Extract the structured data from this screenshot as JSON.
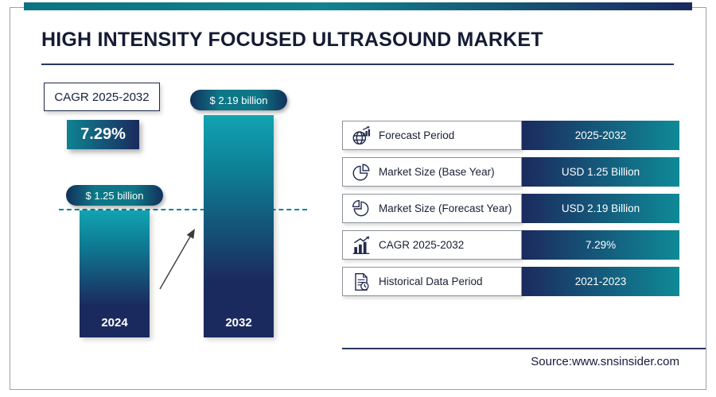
{
  "title": "HIGH INTENSITY FOCUSED ULTRASOUND MARKET",
  "colors": {
    "navy": "#1b2a5e",
    "teal": "#0e8391",
    "text_dark": "#141b34",
    "white": "#ffffff"
  },
  "cagr_box": {
    "label": "CAGR 2025-2032",
    "value": "7.29%"
  },
  "chart_data": {
    "type": "bar",
    "title": "HIGH INTENSITY FOCUSED ULTRASOUND MARKET",
    "categories": [
      "2024",
      "2032"
    ],
    "values": [
      1.25,
      2.19
    ],
    "value_labels": [
      "$ 1.25 billion",
      "$ 2.19 billion"
    ],
    "unit": "USD billion",
    "xlabel": "",
    "ylabel": "",
    "ylim": [
      0,
      2.5
    ],
    "grid": "off",
    "legend": "none",
    "reference_line_at": 1.25,
    "annotations": [
      "dashed teal reference line at 2024 level",
      "diagonal growth arrow between bars"
    ]
  },
  "table": {
    "rows": [
      {
        "icon": "globe-chart-icon",
        "label": "Forecast Period",
        "value": "2025-2032"
      },
      {
        "icon": "pie-chart-icon",
        "label": "Market Size (Base Year)",
        "value": "USD 1.25 Billion"
      },
      {
        "icon": "pie-chart-exploded-icon",
        "label": "Market Size (Forecast Year)",
        "value": "USD 2.19 Billion"
      },
      {
        "icon": "bar-growth-icon",
        "label": "CAGR 2025-2032",
        "value": "7.29%"
      },
      {
        "icon": "document-clock-icon",
        "label": "Historical Data Period",
        "value": "2021-2023"
      }
    ]
  },
  "source": "Source:www.snsinsider.com"
}
